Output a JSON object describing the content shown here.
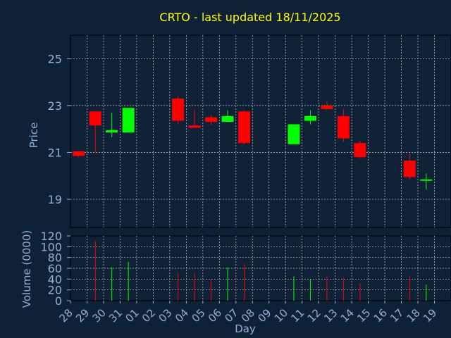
{
  "chart_data": {
    "type": "candlestick",
    "title": "CRTO - last updated 18/11/2025",
    "xlabel": "Day",
    "price_panel": {
      "ylabel": "Price",
      "ylim": [
        17.8,
        26.0
      ],
      "yticks": [
        "19",
        "21",
        "23",
        "25"
      ],
      "grid": true
    },
    "volume_panel": {
      "ylabel": "Volume (0000)",
      "ylim": [
        0,
        120
      ],
      "yticks": [
        "0",
        "20",
        "40",
        "60",
        "80",
        "100",
        "120"
      ],
      "grid": true
    },
    "x_tick_labels": [
      "28",
      "29",
      "30",
      "31",
      "01",
      "02",
      "03",
      "04",
      "05",
      "06",
      "07",
      "08",
      "09",
      "10",
      "11",
      "12",
      "13",
      "14",
      "15",
      "16",
      "17",
      "18",
      "19"
    ],
    "colors": {
      "up": "#00ff00",
      "down": "#ff0000",
      "text": "#ffff00",
      "axis_text": "#8fb2d6"
    },
    "candles": [
      {
        "day": "28",
        "open": 21.05,
        "high": 21.05,
        "low": 20.8,
        "close": 20.85
      },
      {
        "day": "29",
        "open": 22.75,
        "high": 22.75,
        "low": 21.0,
        "close": 22.15
      },
      {
        "day": "30",
        "open": 21.85,
        "high": 22.7,
        "low": 21.65,
        "close": 21.95
      },
      {
        "day": "31",
        "open": 21.85,
        "high": 22.9,
        "low": 21.85,
        "close": 22.9
      },
      {
        "day": "03",
        "open": 23.3,
        "high": 23.4,
        "low": 22.2,
        "close": 22.35
      },
      {
        "day": "04",
        "open": 22.15,
        "high": 22.8,
        "low": 22.05,
        "close": 22.05
      },
      {
        "day": "05",
        "open": 22.5,
        "high": 22.6,
        "low": 22.15,
        "close": 22.3
      },
      {
        "day": "06",
        "open": 22.3,
        "high": 22.8,
        "low": 22.3,
        "close": 22.55
      },
      {
        "day": "07",
        "open": 22.75,
        "high": 22.8,
        "low": 21.35,
        "close": 21.4
      },
      {
        "day": "10",
        "open": 21.35,
        "high": 22.2,
        "low": 21.35,
        "close": 22.2
      },
      {
        "day": "11",
        "open": 22.35,
        "high": 22.8,
        "low": 22.2,
        "close": 22.55
      },
      {
        "day": "12",
        "open": 23.0,
        "high": 23.2,
        "low": 22.8,
        "close": 22.85
      },
      {
        "day": "13",
        "open": 22.55,
        "high": 22.85,
        "low": 21.45,
        "close": 21.6
      },
      {
        "day": "14",
        "open": 21.4,
        "high": 21.5,
        "low": 20.75,
        "close": 20.8
      },
      {
        "day": "17",
        "open": 20.65,
        "high": 20.95,
        "low": 19.85,
        "close": 19.95
      },
      {
        "day": "18",
        "open": 19.8,
        "high": 20.1,
        "low": 19.4,
        "close": 19.85
      }
    ],
    "volumes": [
      {
        "day": "28",
        "value": 0,
        "color": "down"
      },
      {
        "day": "29",
        "value": 110,
        "color": "down"
      },
      {
        "day": "30",
        "value": 62,
        "color": "up"
      },
      {
        "day": "31",
        "value": 72,
        "color": "up"
      },
      {
        "day": "03",
        "value": 50,
        "color": "down"
      },
      {
        "day": "04",
        "value": 50,
        "color": "down"
      },
      {
        "day": "05",
        "value": 40,
        "color": "down"
      },
      {
        "day": "06",
        "value": 62,
        "color": "up"
      },
      {
        "day": "07",
        "value": 68,
        "color": "down"
      },
      {
        "day": "10",
        "value": 45,
        "color": "up"
      },
      {
        "day": "11",
        "value": 40,
        "color": "up"
      },
      {
        "day": "12",
        "value": 45,
        "color": "down"
      },
      {
        "day": "13",
        "value": 42,
        "color": "down"
      },
      {
        "day": "14",
        "value": 32,
        "color": "down"
      },
      {
        "day": "17",
        "value": 45,
        "color": "down"
      },
      {
        "day": "18",
        "value": 30,
        "color": "up"
      }
    ]
  }
}
